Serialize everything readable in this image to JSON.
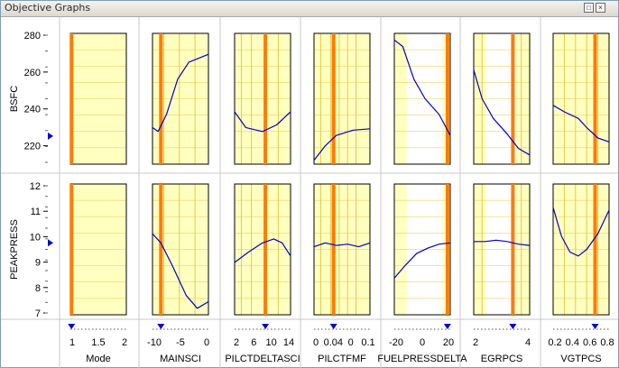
{
  "window": {
    "title": "Objective Graphs"
  },
  "colors": {
    "panel_fill": "#ffffc0",
    "grid": "#e4c94a",
    "curve": "#0000cc",
    "marker": "#ff7b00",
    "background": "#ffffff",
    "triangle": "#0000cc"
  },
  "rows": [
    {
      "label": "BSFC",
      "ticks": [
        "280",
        "260",
        "240",
        "220"
      ],
      "marker_level": 0.785
    },
    {
      "label": "PEAKPRESS",
      "ticks": [
        "12",
        "11",
        "10",
        "9",
        "8",
        "7"
      ],
      "marker_level": 0.45
    }
  ],
  "columns": [
    {
      "label": "Mode",
      "ticks": [
        "1",
        "1.5",
        "2"
      ],
      "marker_pos": 0.02
    },
    {
      "label": "MAINSCI",
      "ticks": [
        "-10",
        "-5",
        "0"
      ],
      "marker_pos": 0.15
    },
    {
      "label": "PILCTDELTASCI",
      "ticks": [
        "2",
        "6",
        "10",
        "14"
      ],
      "marker_pos": 0.55
    },
    {
      "label": "PILCTFMF",
      "ticks": [
        "0",
        "0.04",
        "0",
        "0.1"
      ],
      "marker_pos": 0.35
    },
    {
      "label": "FUELPRESSDELTA",
      "ticks": [
        "-20",
        "0",
        "20"
      ],
      "marker_pos": 0.95
    },
    {
      "label": "EGRPCS",
      "ticks": [
        "2",
        "4"
      ],
      "marker_pos": 0.7
    },
    {
      "label": "VGTPCS",
      "ticks": [
        "0.2",
        "0.4",
        "0.6",
        "0.8"
      ],
      "marker_pos": 0.75
    }
  ]
}
